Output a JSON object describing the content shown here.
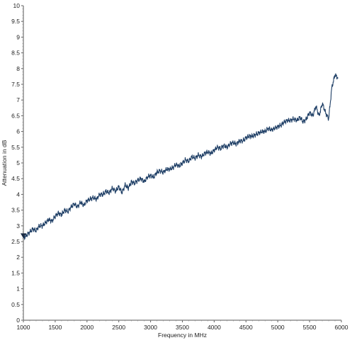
{
  "chart_data": {
    "type": "line",
    "title": "",
    "xlabel": "Frequency in MHz",
    "ylabel": "Attenuation in dB",
    "xlim": [
      1000,
      6000
    ],
    "ylim": [
      0,
      10
    ],
    "x_ticks": [
      1000,
      1500,
      2000,
      2500,
      3000,
      3500,
      4000,
      4500,
      5000,
      5500,
      6000
    ],
    "x_tick_labels": [
      "1000",
      "1500",
      "2000",
      "2500",
      "3000",
      "3500",
      "4000",
      "4500",
      "5000",
      "5500",
      "6000"
    ],
    "y_ticks": [
      0,
      0.5,
      1,
      1.5,
      2,
      2.5,
      3,
      3.5,
      4,
      4.5,
      5,
      5.5,
      6,
      6.5,
      7,
      7.5,
      8,
      8.5,
      9,
      9.5,
      10
    ],
    "y_tick_labels": [
      "0",
      "0.5",
      "1",
      "1.5",
      "2",
      "2.5",
      "3",
      "3.5",
      "4",
      "4.5",
      "5",
      "5.5",
      "6",
      "6.5",
      "7",
      "7.5",
      "8",
      "8.5",
      "9",
      "9.5",
      "10"
    ],
    "grid": false,
    "line_color": "#1f3f66",
    "marker": {
      "x": 1000,
      "y": 2.65,
      "shape": "triangle-down"
    },
    "series": [
      {
        "x": [
          1000,
          1050,
          1100,
          1150,
          1200,
          1250,
          1300,
          1350,
          1400,
          1450,
          1500,
          1550,
          1600,
          1650,
          1700,
          1750,
          1800,
          1850,
          1900,
          1950,
          2000,
          2050,
          2100,
          2150,
          2200,
          2250,
          2300,
          2350,
          2400,
          2450,
          2500,
          2550,
          2600,
          2650,
          2700,
          2750,
          2800,
          2850,
          2900,
          2950,
          3000,
          3050,
          3100,
          3150,
          3200,
          3250,
          3300,
          3350,
          3400,
          3450,
          3500,
          3550,
          3600,
          3650,
          3700,
          3750,
          3800,
          3850,
          3900,
          3950,
          4000,
          4050,
          4100,
          4150,
          4200,
          4250,
          4300,
          4350,
          4400,
          4450,
          4500,
          4550,
          4600,
          4650,
          4700,
          4750,
          4800,
          4850,
          4900,
          4950,
          5000,
          5050,
          5100,
          5150,
          5200,
          5250,
          5300,
          5350,
          5400,
          5450,
          5500,
          5550,
          5600,
          5650,
          5700,
          5750,
          5800,
          5850,
          5900,
          5950
        ],
        "y": [
          2.6,
          2.7,
          2.8,
          2.9,
          2.85,
          3.0,
          3.0,
          3.1,
          3.2,
          3.15,
          3.3,
          3.4,
          3.35,
          3.5,
          3.45,
          3.6,
          3.7,
          3.6,
          3.75,
          3.65,
          3.8,
          3.85,
          3.9,
          3.85,
          4.0,
          4.0,
          4.1,
          4.05,
          4.2,
          4.1,
          4.25,
          4.05,
          4.3,
          4.2,
          4.4,
          4.35,
          4.45,
          4.5,
          4.4,
          4.55,
          4.6,
          4.55,
          4.7,
          4.75,
          4.7,
          4.8,
          4.8,
          4.85,
          4.95,
          4.9,
          5.0,
          5.1,
          5.05,
          5.2,
          5.15,
          5.25,
          5.2,
          5.3,
          5.35,
          5.3,
          5.4,
          5.5,
          5.45,
          5.55,
          5.5,
          5.6,
          5.65,
          5.6,
          5.7,
          5.7,
          5.8,
          5.85,
          5.85,
          5.9,
          5.95,
          6.0,
          6.0,
          6.1,
          6.05,
          6.1,
          6.15,
          6.2,
          6.3,
          6.35,
          6.35,
          6.4,
          6.35,
          6.45,
          6.3,
          6.4,
          6.6,
          6.5,
          6.8,
          6.5,
          6.9,
          6.6,
          6.4,
          7.4,
          7.8,
          7.7
        ]
      }
    ]
  }
}
